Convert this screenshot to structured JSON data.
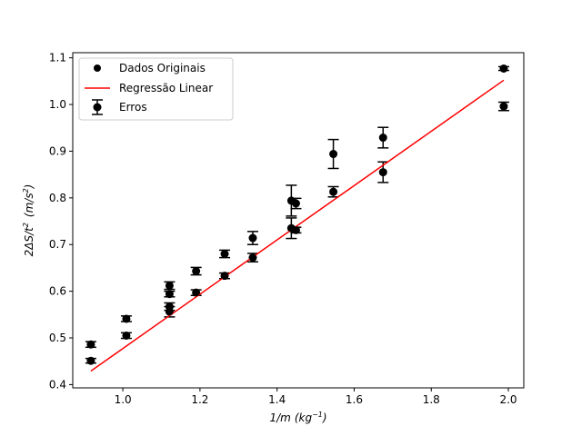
{
  "chart_data": {
    "type": "scatter",
    "title": "",
    "xlabel": "1/m",
    "xlabel_unit_base": "kg",
    "xlabel_unit_exp": "−1",
    "ylabel_prefix": "2ΔS/t",
    "ylabel_prefix_exp": "2",
    "ylabel_unit_base": "m/s",
    "ylabel_unit_exp": "2",
    "xlim": [
      0.87,
      2.04
    ],
    "ylim": [
      0.393,
      1.111
    ],
    "xticks": [
      1.0,
      1.2,
      1.4,
      1.6,
      1.8,
      2.0
    ],
    "xtick_labels": [
      "1.0",
      "1.2",
      "1.4",
      "1.6",
      "1.8",
      "2.0"
    ],
    "yticks": [
      0.4,
      0.5,
      0.6,
      0.7,
      0.8,
      0.9,
      1.0,
      1.1
    ],
    "ytick_labels": [
      "0.4",
      "0.5",
      "0.6",
      "0.7",
      "0.8",
      "0.9",
      "1.0",
      "1.1"
    ],
    "grid": false,
    "legend_position": "top-left",
    "legend": [
      "Dados Originais",
      "Regressão Linear",
      "Erros"
    ],
    "series": [
      {
        "name": "Dados Originais",
        "kind": "points",
        "color": "#000000",
        "points": [
          {
            "x": 0.917,
            "y": 0.486
          },
          {
            "x": 0.917,
            "y": 0.451
          },
          {
            "x": 1.009,
            "y": 0.541
          },
          {
            "x": 1.009,
            "y": 0.505
          },
          {
            "x": 1.121,
            "y": 0.612
          },
          {
            "x": 1.121,
            "y": 0.594
          },
          {
            "x": 1.121,
            "y": 0.567
          },
          {
            "x": 1.121,
            "y": 0.556
          },
          {
            "x": 1.19,
            "y": 0.643
          },
          {
            "x": 1.19,
            "y": 0.597
          },
          {
            "x": 1.264,
            "y": 0.68
          },
          {
            "x": 1.264,
            "y": 0.633
          },
          {
            "x": 1.337,
            "y": 0.714
          },
          {
            "x": 1.337,
            "y": 0.672
          },
          {
            "x": 1.437,
            "y": 0.794
          },
          {
            "x": 1.437,
            "y": 0.735
          },
          {
            "x": 1.449,
            "y": 0.788
          },
          {
            "x": 1.449,
            "y": 0.731
          },
          {
            "x": 1.546,
            "y": 0.894
          },
          {
            "x": 1.546,
            "y": 0.813
          },
          {
            "x": 1.675,
            "y": 0.929
          },
          {
            "x": 1.675,
            "y": 0.855
          },
          {
            "x": 1.988,
            "y": 1.077
          },
          {
            "x": 1.988,
            "y": 0.996
          }
        ]
      },
      {
        "name": "Regressão Linear",
        "kind": "line",
        "color": "#ff0000",
        "x": [
          0.917,
          1.988
        ],
        "y": [
          0.429,
          1.052
        ]
      },
      {
        "name": "Erros",
        "kind": "errorbars",
        "color": "#000000",
        "points": [
          {
            "x": 0.917,
            "y": 0.486,
            "yerr": 0.006
          },
          {
            "x": 0.917,
            "y": 0.451,
            "yerr": 0.005
          },
          {
            "x": 1.009,
            "y": 0.541,
            "yerr": 0.006
          },
          {
            "x": 1.009,
            "y": 0.505,
            "yerr": 0.006
          },
          {
            "x": 1.121,
            "y": 0.612,
            "yerr": 0.008
          },
          {
            "x": 1.121,
            "y": 0.594,
            "yerr": 0.006
          },
          {
            "x": 1.121,
            "y": 0.567,
            "yerr": 0.008
          },
          {
            "x": 1.121,
            "y": 0.556,
            "yerr": 0.011
          },
          {
            "x": 1.19,
            "y": 0.643,
            "yerr": 0.008
          },
          {
            "x": 1.19,
            "y": 0.597,
            "yerr": 0.006
          },
          {
            "x": 1.264,
            "y": 0.68,
            "yerr": 0.008
          },
          {
            "x": 1.264,
            "y": 0.633,
            "yerr": 0.006
          },
          {
            "x": 1.337,
            "y": 0.714,
            "yerr": 0.014
          },
          {
            "x": 1.337,
            "y": 0.672,
            "yerr": 0.009
          },
          {
            "x": 1.437,
            "y": 0.794,
            "yerr": 0.033
          },
          {
            "x": 1.437,
            "y": 0.735,
            "yerr": 0.022
          },
          {
            "x": 1.449,
            "y": 0.788,
            "yerr": 0.011
          },
          {
            "x": 1.449,
            "y": 0.731,
            "yerr": 0.006
          },
          {
            "x": 1.546,
            "y": 0.894,
            "yerr": 0.031
          },
          {
            "x": 1.546,
            "y": 0.813,
            "yerr": 0.011
          },
          {
            "x": 1.675,
            "y": 0.929,
            "yerr": 0.022
          },
          {
            "x": 1.675,
            "y": 0.855,
            "yerr": 0.022
          },
          {
            "x": 1.988,
            "y": 1.077,
            "yerr": 0.004
          },
          {
            "x": 1.988,
            "y": 0.996,
            "yerr": 0.009
          }
        ]
      }
    ]
  }
}
